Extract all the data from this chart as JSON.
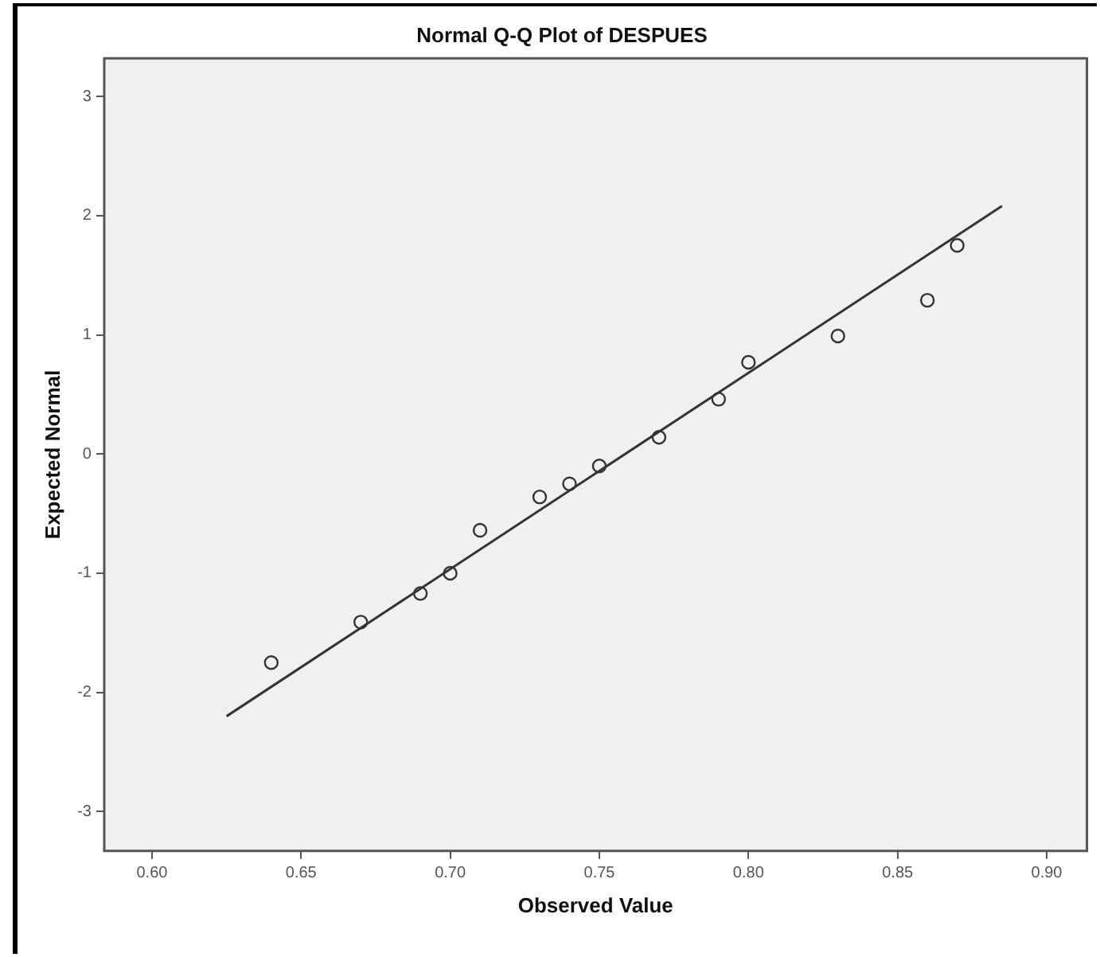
{
  "chart_data": {
    "type": "scatter",
    "title": "Normal Q-Q Plot of DESPUES",
    "xlabel": "Observed Value",
    "ylabel": "Expected Normal",
    "xlim": [
      0.584,
      0.9135
    ],
    "ylim": [
      -3.33,
      3.32
    ],
    "xticks": [
      {
        "value": 0.6,
        "label": "0.60"
      },
      {
        "value": 0.65,
        "label": "0.65"
      },
      {
        "value": 0.7,
        "label": "0.70"
      },
      {
        "value": 0.75,
        "label": "0.75"
      },
      {
        "value": 0.8,
        "label": "0.80"
      },
      {
        "value": 0.85,
        "label": "0.85"
      },
      {
        "value": 0.9,
        "label": "0.90"
      }
    ],
    "yticks": [
      -3,
      -2,
      -1,
      0,
      1,
      2,
      3
    ],
    "grid": false,
    "legend": false,
    "series": [
      {
        "marker": "circle",
        "color": "#333333",
        "x": [
          0.64,
          0.67,
          0.69,
          0.7,
          0.71,
          0.73,
          0.74,
          0.75,
          0.77,
          0.79,
          0.8,
          0.83,
          0.86,
          0.87
        ],
        "values": [
          -1.75,
          -1.41,
          -1.17,
          -1.0,
          -0.64,
          -0.36,
          -0.25,
          -0.1,
          0.14,
          0.46,
          0.77,
          0.99,
          1.29,
          1.75
        ]
      },
      {
        "type": "line",
        "marker": "none",
        "color": "#333333",
        "x": [
          0.625,
          0.885
        ],
        "values": [
          -2.2,
          2.08
        ]
      }
    ]
  }
}
